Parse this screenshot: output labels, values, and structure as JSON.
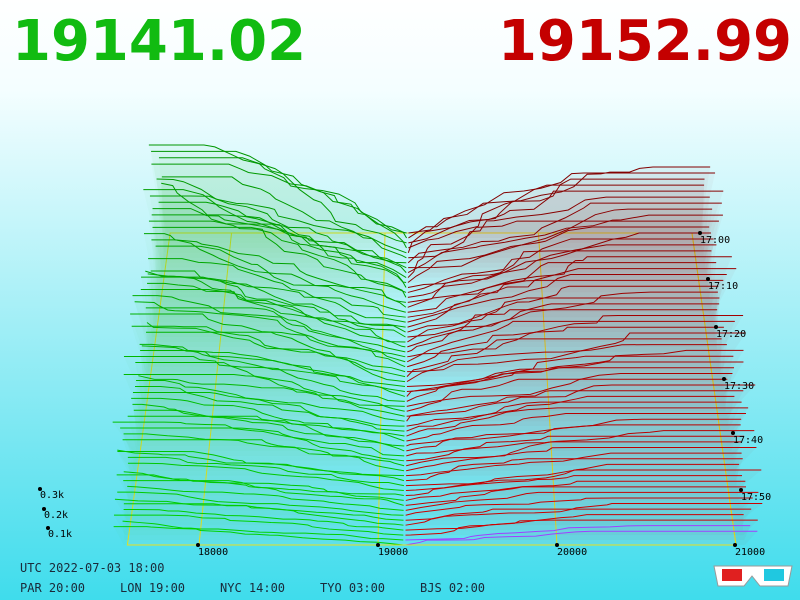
{
  "header": {
    "bid": "19141.02",
    "ask": "19152.99"
  },
  "price_axis": {
    "labels": [
      "18000",
      "19000",
      "20000",
      "21000"
    ]
  },
  "time_axis": {
    "labels": [
      "17:00",
      "17:10",
      "17:20",
      "17:30",
      "17:40",
      "17:50"
    ]
  },
  "depth_axis": {
    "labels": [
      "0.3k",
      "0.2k",
      "0.1k"
    ]
  },
  "footer": {
    "utc": "UTC 2022-07-03 18:00",
    "zones": [
      "PAR 20:00",
      "LON 19:00",
      "NYC 14:00",
      "TYO 03:00",
      "BJS 02:00"
    ]
  }
}
